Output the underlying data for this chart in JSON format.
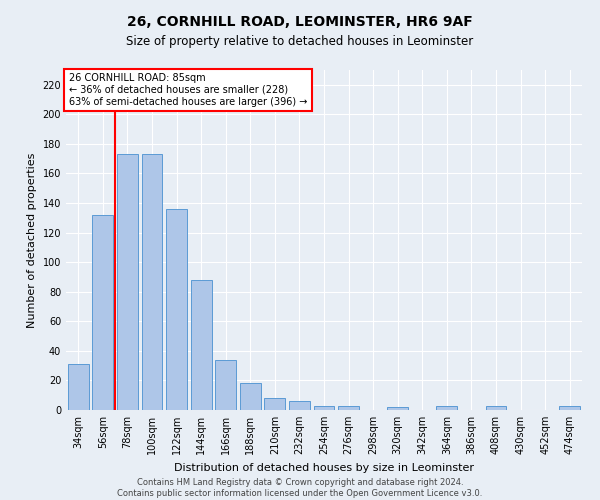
{
  "title_line1": "26, CORNHILL ROAD, LEOMINSTER, HR6 9AF",
  "title_line2": "Size of property relative to detached houses in Leominster",
  "xlabel": "Distribution of detached houses by size in Leominster",
  "ylabel": "Number of detached properties",
  "footer_line1": "Contains HM Land Registry data © Crown copyright and database right 2024.",
  "footer_line2": "Contains public sector information licensed under the Open Government Licence v3.0.",
  "annotation_line1": "26 CORNHILL ROAD: 85sqm",
  "annotation_line2": "← 36% of detached houses are smaller (228)",
  "annotation_line3": "63% of semi-detached houses are larger (396) →",
  "bar_values": [
    31,
    132,
    173,
    173,
    136,
    88,
    34,
    18,
    8,
    6,
    3,
    3,
    0,
    2,
    0,
    3,
    0,
    3,
    0,
    0,
    3
  ],
  "bar_labels": [
    "34sqm",
    "56sqm",
    "78sqm",
    "100sqm",
    "122sqm",
    "144sqm",
    "166sqm",
    "188sqm",
    "210sqm",
    "232sqm",
    "254sqm",
    "276sqm",
    "298sqm",
    "320sqm",
    "342sqm",
    "364sqm",
    "386sqm",
    "408sqm",
    "430sqm",
    "452sqm",
    "474sqm"
  ],
  "bar_color": "#aec6e8",
  "bar_edge_color": "#5b9bd5",
  "vline_color": "red",
  "ylim": [
    0,
    230
  ],
  "yticks": [
    0,
    20,
    40,
    60,
    80,
    100,
    120,
    140,
    160,
    180,
    200,
    220
  ],
  "annotation_box_color": "white",
  "annotation_box_edge": "red",
  "bg_color": "#e8eef5",
  "grid_color": "#ffffff",
  "title_fontsize": 10,
  "subtitle_fontsize": 8.5,
  "ylabel_fontsize": 8,
  "xlabel_fontsize": 8,
  "tick_fontsize": 7,
  "annot_fontsize": 7,
  "footer_fontsize": 6
}
